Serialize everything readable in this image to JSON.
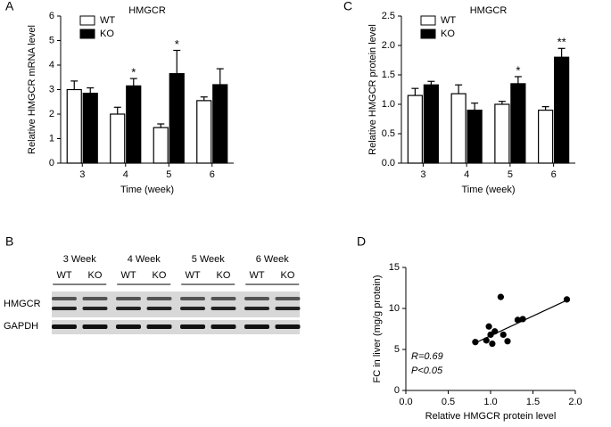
{
  "chart_data": [
    {
      "type": "bar",
      "panel": "A",
      "title": "HMGCR",
      "ylabel": "Relative HMGCR mRNA level",
      "xlabel": "Time (week)",
      "categories": [
        "3",
        "4",
        "5",
        "6"
      ],
      "series": [
        {
          "name": "WT",
          "color": "#ffffff",
          "values": [
            3.0,
            2.0,
            1.45,
            2.55
          ],
          "errors": [
            0.35,
            0.28,
            0.15,
            0.15
          ]
        },
        {
          "name": "KO",
          "color": "#000000",
          "values": [
            2.85,
            3.15,
            3.65,
            3.2
          ],
          "errors": [
            0.22,
            0.3,
            0.95,
            0.65
          ],
          "significance": [
            null,
            "*",
            "*",
            null
          ]
        }
      ],
      "ylim": [
        0,
        6
      ],
      "yticks": [
        0,
        1,
        2,
        3,
        4,
        5,
        6
      ],
      "legend": "upper left"
    },
    {
      "type": "bar",
      "panel": "C",
      "title": "HMGCR",
      "ylabel": "Relative HMGCR protein level",
      "xlabel": "Time (week)",
      "categories": [
        "3",
        "4",
        "5",
        "6"
      ],
      "series": [
        {
          "name": "WT",
          "color": "#ffffff",
          "values": [
            1.15,
            1.18,
            1.0,
            0.9
          ],
          "errors": [
            0.12,
            0.15,
            0.05,
            0.06
          ]
        },
        {
          "name": "KO",
          "color": "#000000",
          "values": [
            1.33,
            0.9,
            1.35,
            1.8
          ],
          "errors": [
            0.06,
            0.12,
            0.12,
            0.15
          ],
          "significance": [
            null,
            null,
            "*",
            "**"
          ]
        }
      ],
      "ylim": [
        0,
        2.5
      ],
      "yticks": [
        {
          "value": 0,
          "label": "0.0"
        },
        0.5,
        {
          "value": 1,
          "label": "1.0"
        },
        1.5,
        {
          "value": 2,
          "label": "2.0"
        },
        2.5
      ],
      "legend": "upper left"
    },
    {
      "type": "scatter",
      "panel": "D",
      "ylabel": "FC in liver (mg/g protein)",
      "xlabel": "Relative HMGCR protein level",
      "x": [
        0.82,
        0.95,
        0.98,
        1.0,
        1.02,
        1.05,
        1.12,
        1.15,
        1.2,
        1.32,
        1.38,
        1.9
      ],
      "values": [
        5.9,
        6.1,
        7.8,
        6.8,
        5.7,
        7.2,
        11.4,
        6.8,
        6.0,
        8.6,
        8.7,
        11.1
      ],
      "color": "#000000",
      "fit": {
        "x": [
          0.82,
          1.9
        ],
        "values": [
          5.8,
          11.0
        ]
      },
      "annotations": [
        "R=0.69",
        "P<0.05"
      ],
      "xlim": [
        0,
        2
      ],
      "xticks": [
        {
          "value": 0,
          "label": "0.0"
        },
        0.5,
        {
          "value": 1,
          "label": "1.0"
        },
        1.5,
        {
          "value": 2,
          "label": "2.0"
        }
      ],
      "ylim": [
        0,
        15
      ],
      "yticks": [
        0,
        5,
        10,
        15
      ]
    }
  ],
  "blot": {
    "panel": "B",
    "weeks": [
      "3 Week",
      "4 Week",
      "5 Week",
      "6 Week"
    ],
    "lanes": [
      "WT",
      "KO",
      "WT",
      "KO",
      "WT",
      "KO",
      "WT",
      "KO"
    ],
    "bands": [
      "HMGCR",
      "GAPDH"
    ]
  }
}
